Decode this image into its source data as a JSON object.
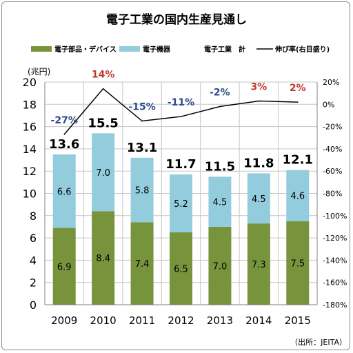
{
  "chart_data": {
    "type": "bar",
    "title": "電子工業の国内生産見通し",
    "source": "（出所：JEITA）",
    "categories": [
      "2009",
      "2010",
      "2011",
      "2012",
      "2013",
      "2014",
      "2015"
    ],
    "series": [
      {
        "name": "電子部品・デバイス",
        "values": [
          6.9,
          8.4,
          7.4,
          6.5,
          7.0,
          7.3,
          7.5
        ],
        "labels": [
          "6.9",
          "8.4",
          "7.4",
          "6.5",
          "7.0",
          "7.3",
          "7.5"
        ],
        "color": "#77933c"
      },
      {
        "name": "電子機器",
        "values": [
          6.6,
          7.0,
          5.8,
          5.2,
          4.5,
          4.5,
          4.6
        ],
        "labels": [
          "6.6",
          "7.0",
          "5.8",
          "5.2",
          "4.5",
          "4.5",
          "4.6"
        ],
        "color": "#93cddd"
      }
    ],
    "totals": {
      "name": "電子工業　計",
      "labels": [
        "13.6",
        "15.5",
        "13.1",
        "11.7",
        "11.5",
        "11.8",
        "12.1"
      ]
    },
    "growth": {
      "name": "伸び率(右目盛り)",
      "values": [
        -27,
        14,
        -15,
        -11,
        -2,
        3,
        2
      ],
      "labels": [
        "-27%",
        "14%",
        "-15%",
        "-11%",
        "-2%",
        "3%",
        "2%"
      ],
      "positive_color": "#c0392b",
      "negative_color": "#2e4a8a"
    },
    "ylabel": "(兆円)",
    "ylim": [
      0,
      20
    ],
    "yticks": [
      "0",
      "2",
      "4",
      "6",
      "8",
      "10",
      "12",
      "14",
      "16",
      "18",
      "20"
    ],
    "y2lim": [
      -180,
      20
    ],
    "y2ticks": [
      "-180%",
      "-160%",
      "-140%",
      "-120%",
      "-100%",
      "-80%",
      "-60%",
      "-40%",
      "-20%",
      "0%",
      "20%"
    ],
    "grid": true,
    "legend_position": "top"
  }
}
